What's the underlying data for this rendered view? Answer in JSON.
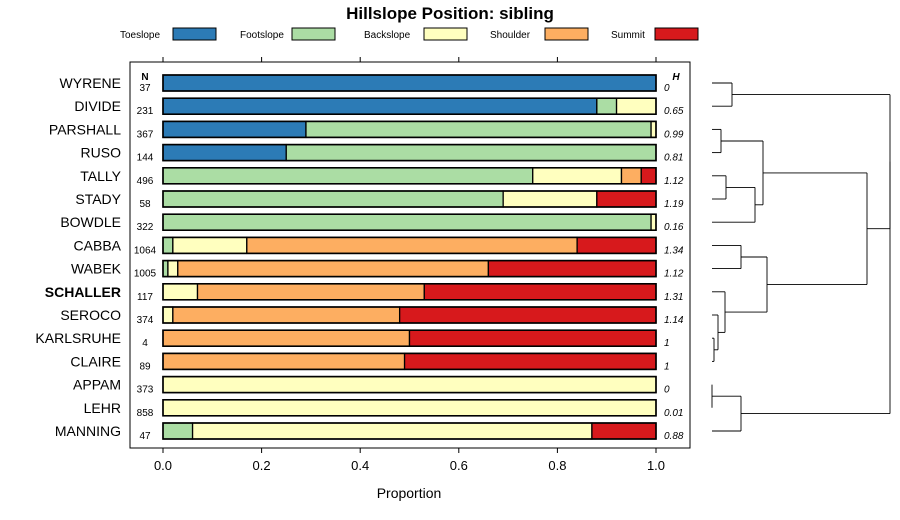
{
  "chart_data": {
    "type": "bar",
    "orientation": "horizontal",
    "stacked": true,
    "title": "Hillslope Position: sibling",
    "xlabel": "Proportion",
    "xlim": [
      0,
      1
    ],
    "x_ticks": [
      "0.0",
      "0.2",
      "0.4",
      "0.6",
      "0.8",
      "1.0"
    ],
    "n_header": "N",
    "h_header": "H",
    "legend_placement": "top",
    "highlighted_category": "SCHALLER",
    "series": [
      {
        "name": "Toeslope",
        "color": "#2c7bb6"
      },
      {
        "name": "Footslope",
        "color": "#abdda4"
      },
      {
        "name": "Backslope",
        "color": "#ffffbf"
      },
      {
        "name": "Shoulder",
        "color": "#fdae61"
      },
      {
        "name": "Summit",
        "color": "#d7191c"
      }
    ],
    "categories": [
      "WYRENE",
      "DIVIDE",
      "PARSHALL",
      "RUSO",
      "TALLY",
      "STADY",
      "BOWDLE",
      "CABBA",
      "WABEK",
      "SCHALLER",
      "SEROCO",
      "KARLSRUHE",
      "CLAIRE",
      "APPAM",
      "LEHR",
      "MANNING"
    ],
    "n_values": [
      "37",
      "231",
      "367",
      "144",
      "496",
      "58",
      "322",
      "1064",
      "1005",
      "117",
      "374",
      "4",
      "89",
      "373",
      "858",
      "47"
    ],
    "h_values": [
      "0",
      "0.65",
      "0.99",
      "0.81",
      "1.12",
      "1.19",
      "0.16",
      "1.34",
      "1.12",
      "1.31",
      "1.14",
      "1",
      "1",
      "0",
      "0.01",
      "0.88"
    ],
    "proportions": [
      [
        1.0,
        0.0,
        0.0,
        0.0,
        0.0
      ],
      [
        0.88,
        0.04,
        0.08,
        0.0,
        0.0
      ],
      [
        0.29,
        0.7,
        0.01,
        0.0,
        0.0
      ],
      [
        0.25,
        0.75,
        0.0,
        0.0,
        0.0
      ],
      [
        0.0,
        0.75,
        0.18,
        0.04,
        0.03
      ],
      [
        0.0,
        0.69,
        0.19,
        0.0,
        0.12
      ],
      [
        0.0,
        0.99,
        0.01,
        0.0,
        0.0
      ],
      [
        0.0,
        0.02,
        0.15,
        0.67,
        0.16
      ],
      [
        0.0,
        0.01,
        0.02,
        0.63,
        0.34
      ],
      [
        0.0,
        0.0,
        0.07,
        0.46,
        0.47
      ],
      [
        0.0,
        0.0,
        0.02,
        0.46,
        0.52
      ],
      [
        0.0,
        0.0,
        0.0,
        0.5,
        0.5
      ],
      [
        0.0,
        0.0,
        0.0,
        0.49,
        0.51
      ],
      [
        0.0,
        0.0,
        1.0,
        0.0,
        0.0
      ],
      [
        0.0,
        0.0,
        1.0,
        0.0,
        0.0
      ],
      [
        0.0,
        0.06,
        0.81,
        0.0,
        0.13
      ]
    ]
  }
}
